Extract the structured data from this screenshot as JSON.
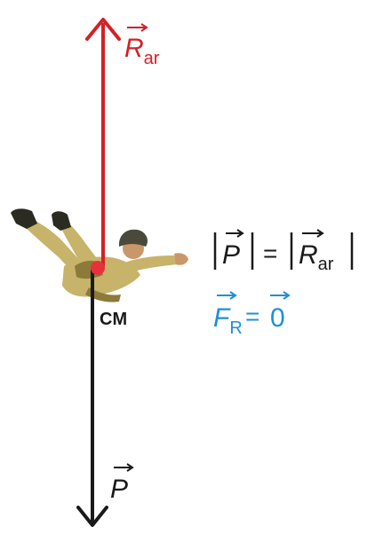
{
  "colors": {
    "background": "#ffffff",
    "air_resistance": "#d42027",
    "weight": "#1a1a1a",
    "resultant": "#1f8fd6",
    "center_of_mass": "#e5323a",
    "suit": "#c8b36a",
    "suit_shadow": "#8c7a3a",
    "helmet": "#4a4a3a",
    "boots": "#2b2b22",
    "skin": "#c9976a"
  },
  "labels": {
    "air_resistance": {
      "symbol": "R",
      "subscript": "ar"
    },
    "weight": {
      "symbol": "P"
    },
    "center_of_mass": "CM",
    "magnitude_equation": {
      "left_symbol": "P",
      "equals": "=",
      "right_symbol": "R",
      "right_subscript": "ar"
    },
    "resultant_equation": {
      "symbol": "F",
      "subscript": "R",
      "equals": "=",
      "value": "0"
    }
  },
  "icons": {
    "skydiver": "skydiver-illustration",
    "air_resistance_arrowhead": "arrow-up-icon",
    "weight_arrowhead": "arrow-down-icon"
  }
}
